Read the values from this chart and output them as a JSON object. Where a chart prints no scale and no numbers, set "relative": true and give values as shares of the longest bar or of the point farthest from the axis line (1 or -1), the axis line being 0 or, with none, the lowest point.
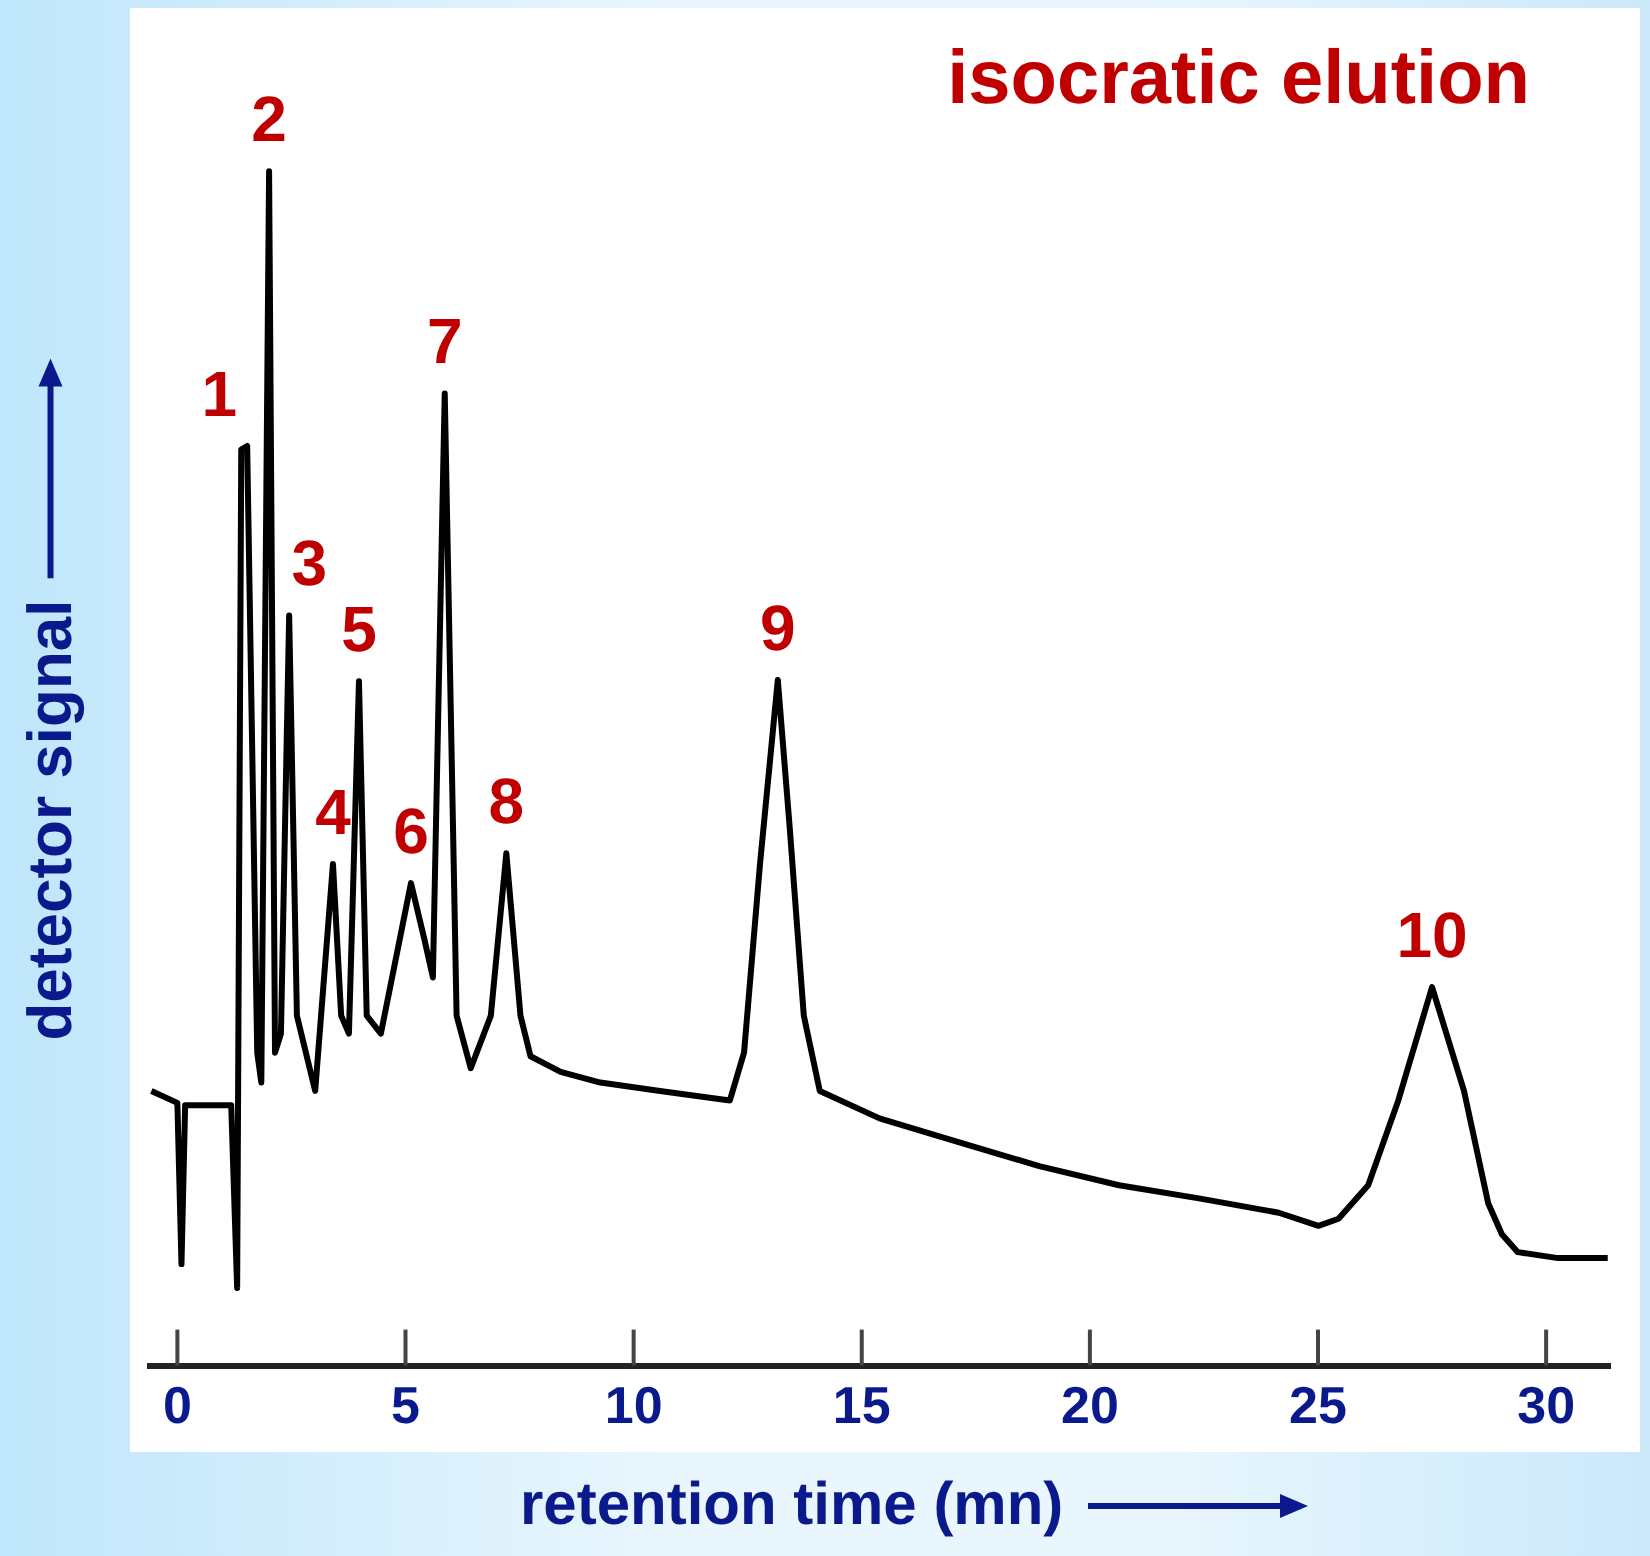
{
  "chart_data": {
    "type": "line",
    "title": "isocratic elution",
    "xlabel": "retention time (mn)",
    "ylabel": "detector signal",
    "relative": true,
    "xlim": [
      -0.6,
      31.4
    ],
    "xticks": [
      0,
      5,
      10,
      15,
      20,
      25,
      30
    ],
    "grid": false,
    "legend": false,
    "marker": "none",
    "line_style": "solid",
    "series": [
      {
        "color": "#000000",
        "x": [
          -0.57,
          0,
          0.09,
          0.17,
          1.18,
          1.31,
          1.4,
          1.53,
          1.75,
          1.84,
          2.01,
          2.14,
          2.27,
          2.45,
          2.62,
          3.02,
          3.41,
          3.59,
          3.76,
          3.98,
          4.15,
          4.46,
          5.12,
          5.42,
          5.6,
          5.86,
          6.12,
          6.43,
          6.87,
          7.21,
          7.52,
          7.74,
          8.4,
          9.27,
          10.58,
          12.11,
          12.42,
          12.77,
          13.16,
          13.42,
          13.73,
          14.08,
          15.39,
          16.7,
          18.89,
          20.64,
          22.39,
          24.14,
          25.01,
          25.45,
          26.1,
          26.76,
          27.5,
          28.2,
          28.73,
          29.03,
          29.38,
          30.26,
          31.35
        ],
        "values": [
          0.23,
          0.22,
          0.085,
          0.218,
          0.218,
          0.065,
          0.767,
          0.77,
          0.262,
          0.237,
          1,
          0.262,
          0.278,
          0.628,
          0.293,
          0.23,
          0.42,
          0.293,
          0.278,
          0.573,
          0.293,
          0.278,
          0.404,
          0.356,
          0.325,
          0.814,
          0.293,
          0.249,
          0.293,
          0.429,
          0.293,
          0.259,
          0.246,
          0.237,
          0.23,
          0.222,
          0.262,
          0.42,
          0.574,
          0.451,
          0.293,
          0.23,
          0.207,
          0.192,
          0.167,
          0.151,
          0.14,
          0.128,
          0.117,
          0.123,
          0.151,
          0.222,
          0.317,
          0.23,
          0.136,
          0.11,
          0.095,
          0.09,
          0.09
        ]
      }
    ],
    "annotations": [
      {
        "text": "1",
        "x": 1.53,
        "y": 0.77
      },
      {
        "text": "2",
        "x": 2.01,
        "y": 1
      },
      {
        "text": "3",
        "x": 2.45,
        "y": 0.628
      },
      {
        "text": "4",
        "x": 3.41,
        "y": 0.42
      },
      {
        "text": "5",
        "x": 3.98,
        "y": 0.573
      },
      {
        "text": "6",
        "x": 5.12,
        "y": 0.404
      },
      {
        "text": "7",
        "x": 5.86,
        "y": 0.814
      },
      {
        "text": "8",
        "x": 7.21,
        "y": 0.429
      },
      {
        "text": "9",
        "x": 13.16,
        "y": 0.574
      },
      {
        "text": "10",
        "x": 27.5,
        "y": 0.317
      }
    ]
  }
}
